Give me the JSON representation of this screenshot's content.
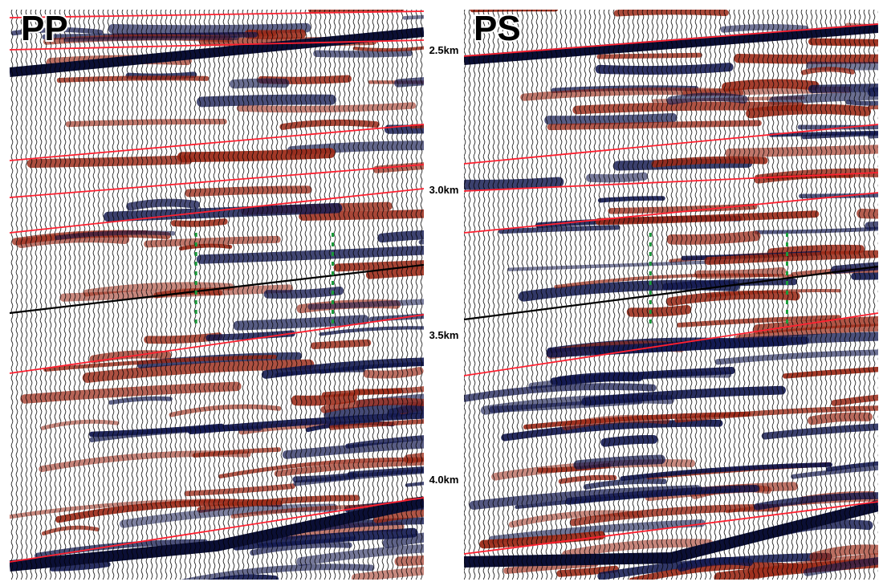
{
  "panels": [
    {
      "label": "PP"
    },
    {
      "label": "PS"
    }
  ],
  "depth_labels": [
    "2.5km",
    "3.0km",
    "3.5km",
    "4.0km"
  ]
}
